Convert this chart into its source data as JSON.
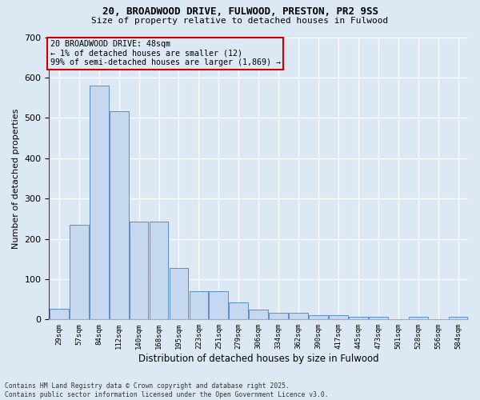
{
  "title1": "20, BROADWOOD DRIVE, FULWOOD, PRESTON, PR2 9SS",
  "title2": "Size of property relative to detached houses in Fulwood",
  "xlabel": "Distribution of detached houses by size in Fulwood",
  "ylabel": "Number of detached properties",
  "categories": [
    "29sqm",
    "57sqm",
    "84sqm",
    "112sqm",
    "140sqm",
    "168sqm",
    "195sqm",
    "223sqm",
    "251sqm",
    "279sqm",
    "306sqm",
    "334sqm",
    "362sqm",
    "390sqm",
    "417sqm",
    "445sqm",
    "473sqm",
    "501sqm",
    "528sqm",
    "556sqm",
    "584sqm"
  ],
  "values": [
    27,
    235,
    580,
    517,
    243,
    243,
    127,
    70,
    70,
    43,
    25,
    17,
    17,
    11,
    11,
    6,
    6,
    0,
    6,
    0,
    6
  ],
  "bar_color": "#c5d8f0",
  "bar_edge_color": "#5b8dc8",
  "highlight_color": "#cc0000",
  "annotation_title": "20 BROADWOOD DRIVE: 48sqm",
  "annotation_line1": "← 1% of detached houses are smaller (12)",
  "annotation_line2": "99% of semi-detached houses are larger (1,869) →",
  "bg_color": "#dde8f5",
  "grid_color": "#ffffff",
  "footer1": "Contains HM Land Registry data © Crown copyright and database right 2025.",
  "footer2": "Contains public sector information licensed under the Open Government Licence v3.0.",
  "ylim": [
    0,
    700
  ],
  "yticks": [
    0,
    100,
    200,
    300,
    400,
    500,
    600,
    700
  ]
}
